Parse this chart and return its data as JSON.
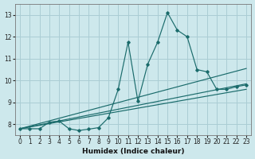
{
  "title": "",
  "xlabel": "Humidex (Indice chaleur)",
  "ylabel": "",
  "bg_color": "#cde8ec",
  "grid_color": "#aacdd4",
  "line_color": "#1a6b6b",
  "xlim": [
    -0.5,
    23.5
  ],
  "ylim": [
    7.5,
    13.5
  ],
  "yticks": [
    8,
    9,
    10,
    11,
    12,
    13
  ],
  "xticks": [
    0,
    1,
    2,
    3,
    4,
    5,
    6,
    7,
    8,
    9,
    10,
    11,
    12,
    13,
    14,
    15,
    16,
    17,
    18,
    19,
    20,
    21,
    22,
    23
  ],
  "main_x": [
    0,
    1,
    2,
    3,
    4,
    5,
    6,
    7,
    8,
    9,
    10,
    11,
    12,
    13,
    14,
    15,
    16,
    17,
    18,
    19,
    20,
    21,
    22,
    23
  ],
  "main_y": [
    7.8,
    7.8,
    7.8,
    8.1,
    8.15,
    7.8,
    7.72,
    7.78,
    7.85,
    8.3,
    9.6,
    11.75,
    9.05,
    10.75,
    11.75,
    13.1,
    12.3,
    12.0,
    10.5,
    10.4,
    9.6,
    9.6,
    9.72,
    9.8
  ],
  "line1_x": [
    0,
    23
  ],
  "line1_y": [
    7.8,
    9.6
  ],
  "line2_x": [
    0,
    23
  ],
  "line2_y": [
    7.8,
    10.55
  ],
  "line3_x": [
    0,
    23
  ],
  "line3_y": [
    7.8,
    9.85
  ]
}
